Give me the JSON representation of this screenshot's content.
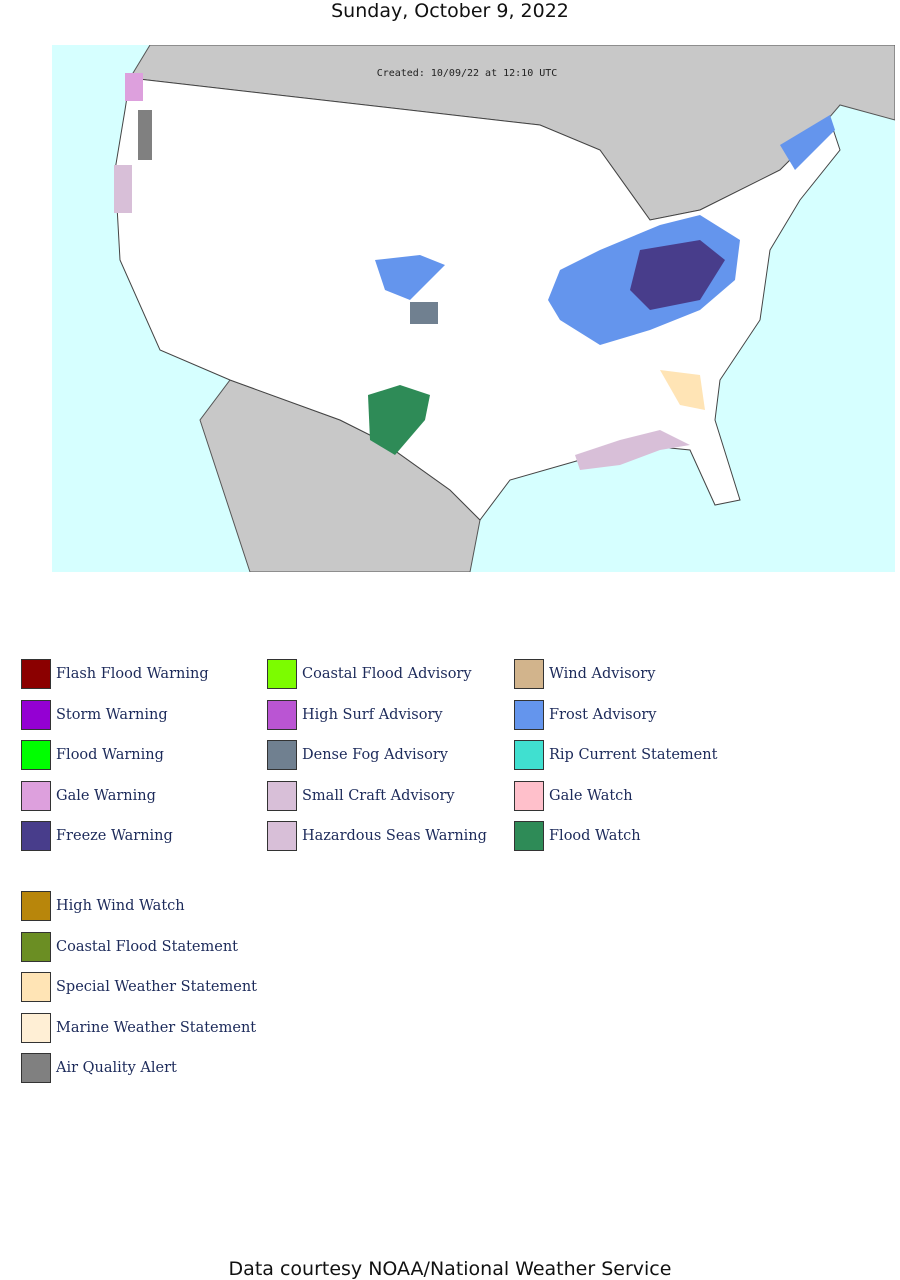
{
  "header": {
    "date": "Sunday, October 9, 2022"
  },
  "map": {
    "caption": "Created: 10/09/22 at 12:10 UTC"
  },
  "legend": {
    "columns": [
      [
        {
          "label": "Flash Flood Warning",
          "color": "#8b0000"
        },
        {
          "label": "Storm Warning",
          "color": "#9400d3"
        },
        {
          "label": "Flood Warning",
          "color": "#00ff00"
        },
        {
          "label": "Gale Warning",
          "color": "#dda0dd"
        },
        {
          "label": "Freeze Warning",
          "color": "#483d8b"
        }
      ],
      [
        {
          "label": "Coastal Flood Advisory",
          "color": "#7cfc00"
        },
        {
          "label": "High Surf Advisory",
          "color": "#ba55d3"
        },
        {
          "label": "Dense Fog Advisory",
          "color": "#708090"
        },
        {
          "label": "Small Craft Advisory",
          "color": "#d8bfd8"
        },
        {
          "label": "Hazardous Seas Warning",
          "color": "#d8bfd8"
        }
      ],
      [
        {
          "label": "Wind Advisory",
          "color": "#d2b48c"
        },
        {
          "label": "Frost Advisory",
          "color": "#6495ed"
        },
        {
          "label": "Rip Current Statement",
          "color": "#40e0d0"
        },
        {
          "label": "Gale Watch",
          "color": "#ffc0cb"
        },
        {
          "label": "Flood Watch",
          "color": "#2e8b57"
        }
      ]
    ],
    "extra": [
      {
        "label": "High Wind Watch",
        "color": "#b8860b"
      },
      {
        "label": "Coastal Flood Statement",
        "color": "#6b8e23"
      },
      {
        "label": "Special Weather Statement",
        "color": "#ffe4b5"
      },
      {
        "label": "Marine Weather Statement",
        "color": "#ffefd5"
      },
      {
        "label": "Air Quality Alert",
        "color": "#808080"
      }
    ]
  },
  "footer": {
    "text": "Data courtesy NOAA/National Weather Service"
  }
}
